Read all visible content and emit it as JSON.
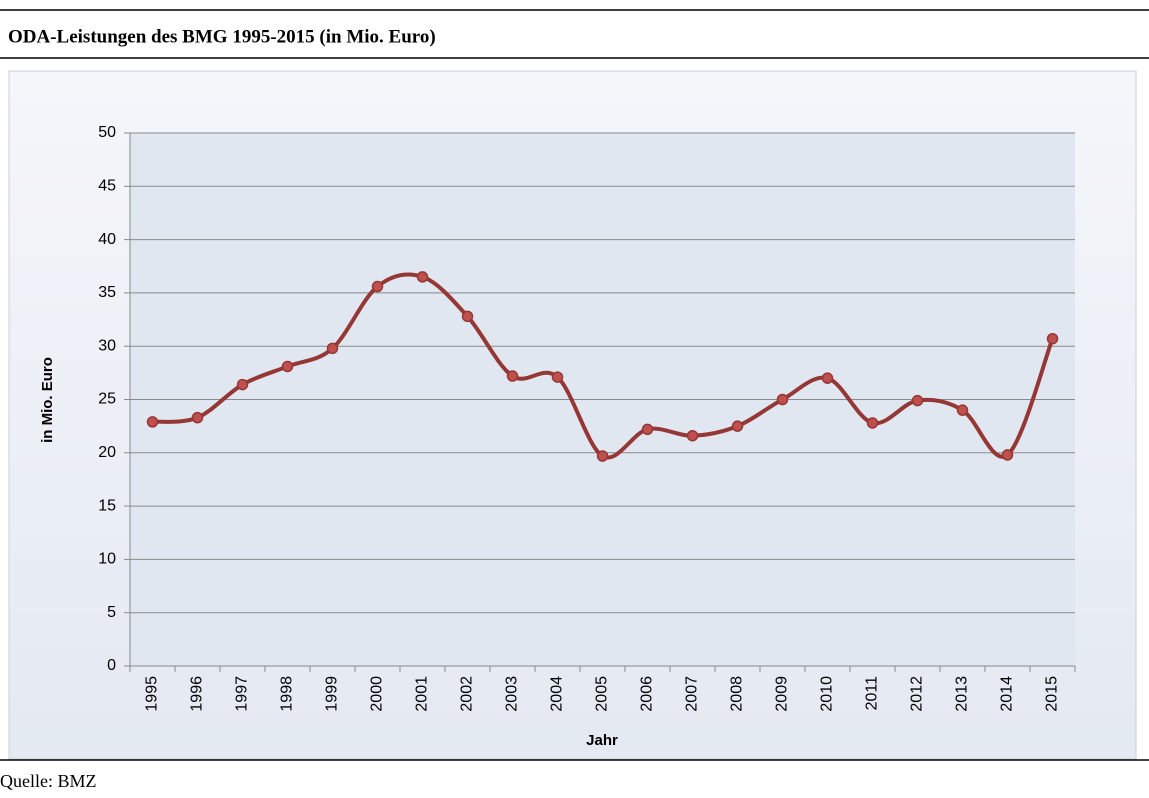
{
  "chart_data": {
    "type": "line",
    "title": "ODA-Leistungen des BMG 1995-2015 (in Mio. Euro)",
    "source": "Quelle: BMZ",
    "x_label": "Jahr",
    "y_label": "in Mio. Euro",
    "categories": [
      "1995",
      "1996",
      "1997",
      "1998",
      "1999",
      "2000",
      "2001",
      "2002",
      "2003",
      "2004",
      "2005",
      "2006",
      "2007",
      "2008",
      "2009",
      "2010",
      "2011",
      "2012",
      "2013",
      "2014",
      "2015"
    ],
    "series": [
      {
        "color": "#953735",
        "values": [
          22.9,
          23.3,
          26.4,
          28.1,
          29.8,
          35.6,
          36.5,
          32.8,
          27.2,
          27.1,
          19.7,
          22.2,
          21.6,
          22.5,
          25.0,
          27.0,
          22.8,
          24.9,
          24.0,
          19.8,
          30.7
        ]
      }
    ],
    "ylim": [
      0,
      50
    ],
    "yticks": [
      0,
      5,
      10,
      15,
      20,
      25,
      30,
      35,
      40,
      45,
      50
    ],
    "grid": true,
    "smooth": true
  }
}
